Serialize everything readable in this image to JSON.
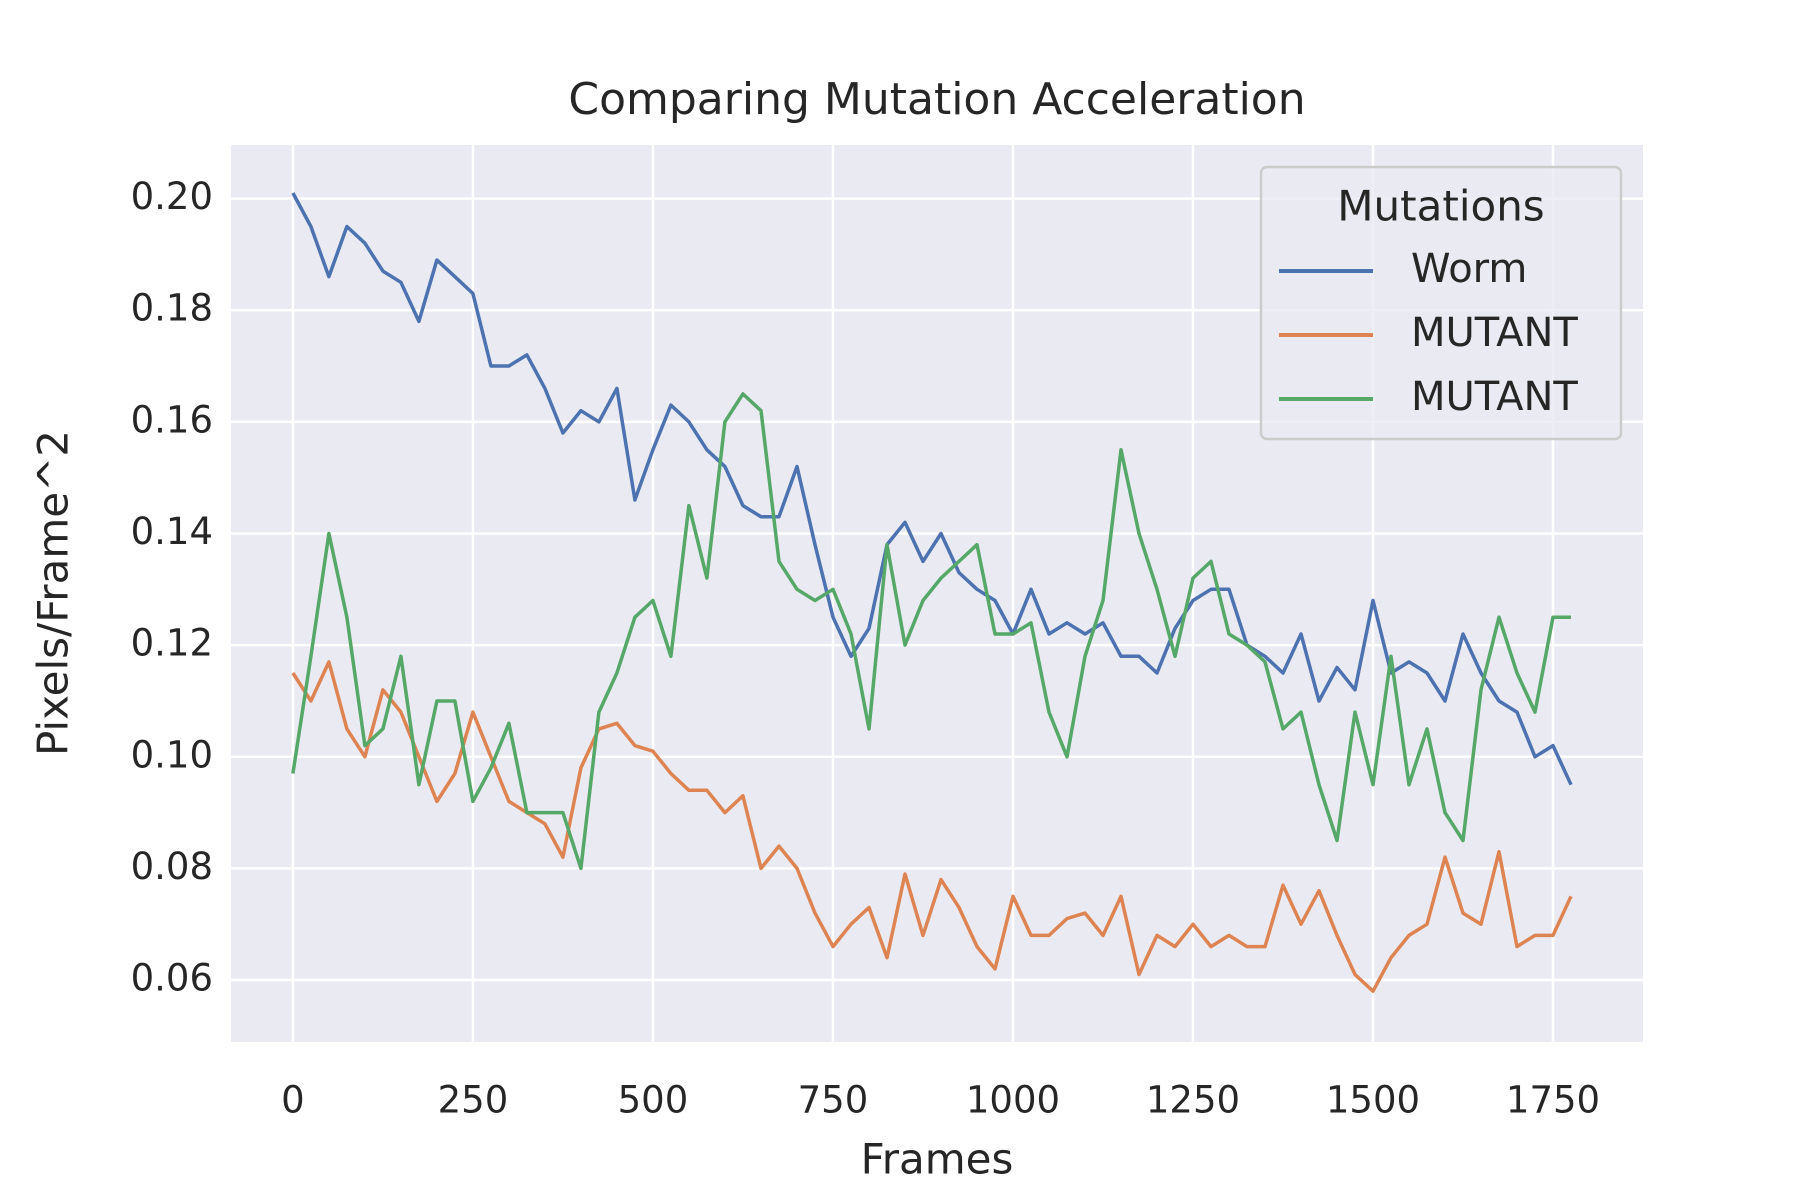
{
  "chart_data": {
    "type": "line",
    "title": "Comparing Mutation Acceleration",
    "xlabel": "Frames",
    "ylabel": "Pixels/Frame^2",
    "x": [
      0,
      25,
      50,
      75,
      100,
      125,
      150,
      175,
      200,
      225,
      250,
      275,
      300,
      325,
      350,
      375,
      400,
      425,
      450,
      475,
      500,
      525,
      550,
      575,
      600,
      625,
      650,
      675,
      700,
      725,
      750,
      775,
      800,
      825,
      850,
      875,
      900,
      925,
      950,
      975,
      1000,
      1025,
      1050,
      1075,
      1100,
      1125,
      1150,
      1175,
      1200,
      1225,
      1250,
      1275,
      1300,
      1325,
      1350,
      1375,
      1400,
      1425,
      1450,
      1475,
      1500,
      1525,
      1550,
      1575,
      1600,
      1625,
      1650,
      1675,
      1700,
      1725,
      1750,
      1775
    ],
    "series": [
      {
        "name": "Worm",
        "color": "#4c72b0",
        "values": [
          0.201,
          0.195,
          0.186,
          0.195,
          0.192,
          0.187,
          0.185,
          0.178,
          0.189,
          0.186,
          0.183,
          0.17,
          0.17,
          0.172,
          0.166,
          0.158,
          0.162,
          0.16,
          0.166,
          0.146,
          0.155,
          0.163,
          0.16,
          0.155,
          0.152,
          0.145,
          0.143,
          0.143,
          0.152,
          0.138,
          0.125,
          0.118,
          0.123,
          0.138,
          0.142,
          0.135,
          0.14,
          0.133,
          0.13,
          0.128,
          0.122,
          0.13,
          0.122,
          0.124,
          0.122,
          0.124,
          0.118,
          0.118,
          0.115,
          0.123,
          0.128,
          0.13,
          0.13,
          0.12,
          0.118,
          0.115,
          0.122,
          0.11,
          0.116,
          0.112,
          0.128,
          0.115,
          0.117,
          0.115,
          0.11,
          0.122,
          0.115,
          0.11,
          0.108,
          0.1,
          0.102,
          0.095
        ]
      },
      {
        "name": "MUTANT",
        "color": "#dd8452",
        "values": [
          0.115,
          0.11,
          0.117,
          0.105,
          0.1,
          0.112,
          0.108,
          0.1,
          0.092,
          0.097,
          0.108,
          0.1,
          0.092,
          0.09,
          0.088,
          0.082,
          0.098,
          0.105,
          0.106,
          0.102,
          0.101,
          0.097,
          0.094,
          0.094,
          0.09,
          0.093,
          0.08,
          0.084,
          0.08,
          0.072,
          0.066,
          0.07,
          0.073,
          0.064,
          0.079,
          0.068,
          0.078,
          0.073,
          0.066,
          0.062,
          0.075,
          0.068,
          0.068,
          0.071,
          0.072,
          0.068,
          0.075,
          0.061,
          0.068,
          0.066,
          0.07,
          0.066,
          0.068,
          0.066,
          0.066,
          0.077,
          0.07,
          0.076,
          0.068,
          0.061,
          0.058,
          0.064,
          0.068,
          0.07,
          0.082,
          0.072,
          0.07,
          0.083,
          0.066,
          0.068,
          0.068,
          0.075
        ]
      },
      {
        "name": "MUTANT",
        "color": "#55a868",
        "values": [
          0.097,
          0.118,
          0.14,
          0.125,
          0.102,
          0.105,
          0.118,
          0.095,
          0.11,
          0.11,
          0.092,
          0.098,
          0.106,
          0.09,
          0.09,
          0.09,
          0.08,
          0.108,
          0.115,
          0.125,
          0.128,
          0.118,
          0.145,
          0.132,
          0.16,
          0.165,
          0.162,
          0.135,
          0.13,
          0.128,
          0.13,
          0.122,
          0.105,
          0.138,
          0.12,
          0.128,
          0.132,
          0.135,
          0.138,
          0.122,
          0.122,
          0.124,
          0.108,
          0.1,
          0.118,
          0.128,
          0.155,
          0.14,
          0.13,
          0.118,
          0.132,
          0.135,
          0.122,
          0.12,
          0.117,
          0.105,
          0.108,
          0.095,
          0.085,
          0.108,
          0.095,
          0.118,
          0.095,
          0.105,
          0.09,
          0.085,
          0.112,
          0.125,
          0.115,
          0.108,
          0.125,
          0.125
        ]
      }
    ],
    "xlim": [
      -86,
      1875
    ],
    "ylim": [
      0.0489,
      0.2096
    ],
    "xticks": [
      0,
      250,
      500,
      750,
      1000,
      1250,
      1500,
      1750
    ],
    "yticks": [
      0.06,
      0.08,
      {
        "value": 0.1,
        "label": "0.10"
      },
      0.12,
      0.14,
      0.16,
      0.18,
      {
        "value": 0.2,
        "label": "0.20"
      }
    ],
    "grid": true,
    "legend": "upper right",
    "legend_title": "Mutations"
  }
}
